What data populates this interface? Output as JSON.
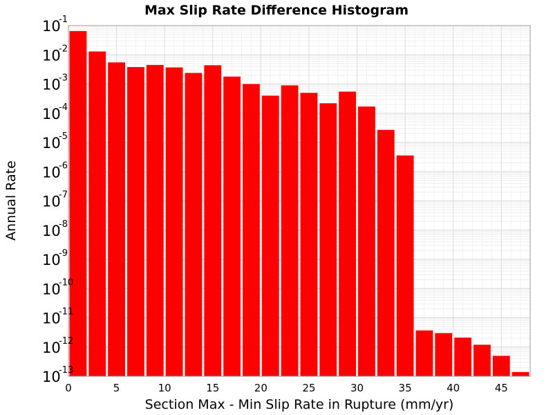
{
  "chart_data": {
    "type": "bar",
    "title": "Max Slip Rate Difference Histogram",
    "xlabel": "Section Max - Min Slip Rate in Rupture (mm/yr)",
    "ylabel": "Annual Rate",
    "y_scale": "log",
    "xlim": [
      0,
      48
    ],
    "ylim": [
      1e-13,
      0.1
    ],
    "bin_width": 2,
    "x_ticks": [
      0,
      5,
      10,
      15,
      20,
      25,
      30,
      35,
      40,
      45
    ],
    "x_tick_labels": [
      "0",
      "5",
      "10",
      "15",
      "20",
      "25",
      "30",
      "35",
      "40",
      "45"
    ],
    "y_ticks": [
      {
        "base": "10",
        "exp": "-1"
      },
      {
        "base": "10",
        "exp": "-2"
      },
      {
        "base": "10",
        "exp": "-3"
      },
      {
        "base": "10",
        "exp": "-4"
      },
      {
        "base": "10",
        "exp": "-5"
      },
      {
        "base": "10",
        "exp": "-6"
      },
      {
        "base": "10",
        "exp": "-7"
      },
      {
        "base": "10",
        "exp": "-8"
      },
      {
        "base": "10",
        "exp": "-9"
      },
      {
        "base": "10",
        "exp": "-10"
      },
      {
        "base": "10",
        "exp": "-11"
      },
      {
        "base": "10",
        "exp": "-12"
      },
      {
        "base": "10",
        "exp": "-13"
      }
    ],
    "bars": [
      {
        "x": 1,
        "value": 0.065
      },
      {
        "x": 3,
        "value": 0.013
      },
      {
        "x": 5,
        "value": 0.0055
      },
      {
        "x": 7,
        "value": 0.0038
      },
      {
        "x": 9,
        "value": 0.0045
      },
      {
        "x": 11,
        "value": 0.0037
      },
      {
        "x": 13,
        "value": 0.0024
      },
      {
        "x": 15,
        "value": 0.0044
      },
      {
        "x": 17,
        "value": 0.0018
      },
      {
        "x": 19,
        "value": 0.001
      },
      {
        "x": 21,
        "value": 0.0004
      },
      {
        "x": 23,
        "value": 0.0009
      },
      {
        "x": 25,
        "value": 0.0005
      },
      {
        "x": 27,
        "value": 0.00022
      },
      {
        "x": 29,
        "value": 0.00055
      },
      {
        "x": 31,
        "value": 0.00017
      },
      {
        "x": 33,
        "value": 2.7e-05
      },
      {
        "x": 35,
        "value": 3.6e-06
      },
      {
        "x": 37,
        "value": 3.7e-12
      },
      {
        "x": 39,
        "value": 3e-12
      },
      {
        "x": 41,
        "value": 2.1e-12
      },
      {
        "x": 43,
        "value": 1.2e-12
      },
      {
        "x": 45,
        "value": 5e-13
      },
      {
        "x": 47,
        "value": 1.4e-13
      }
    ],
    "bar_color": "#ff0000",
    "grid": true,
    "minor_grid": true,
    "legend": "none"
  }
}
